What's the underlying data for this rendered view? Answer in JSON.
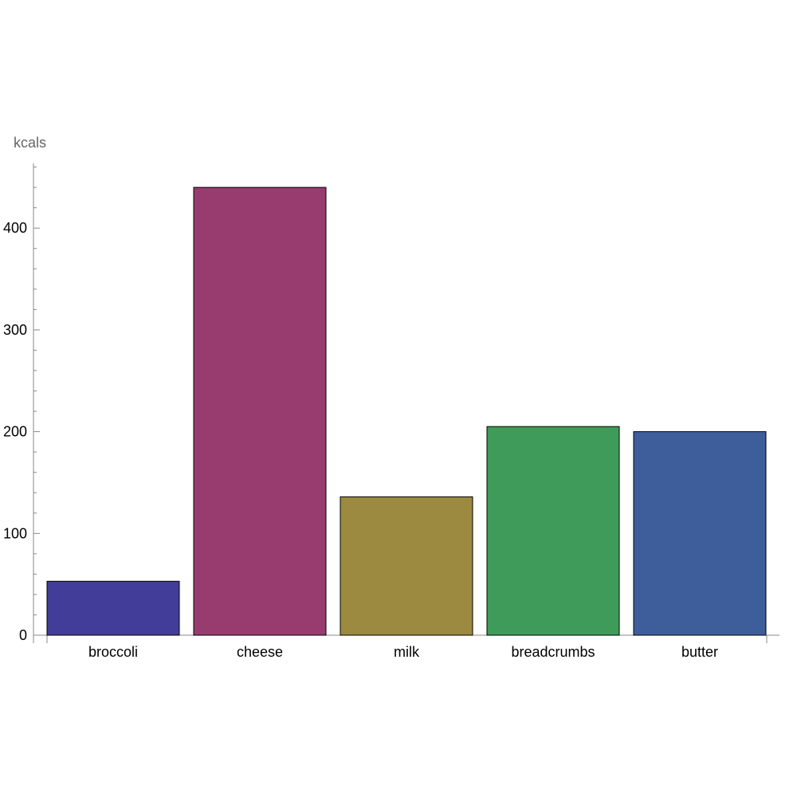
{
  "chart_data": {
    "type": "bar",
    "title": "",
    "xlabel": "",
    "ylabel": "kcals",
    "categories": [
      "broccoli",
      "cheese",
      "milk",
      "breadcrumbs",
      "butter"
    ],
    "values": [
      53,
      440,
      136,
      205,
      200
    ],
    "colors": [
      "#433d9a",
      "#983c6f",
      "#9b8a40",
      "#3f9b59",
      "#3e5e9b"
    ],
    "ylim": [
      0,
      465
    ],
    "yticks": [
      0,
      100,
      200,
      300,
      400
    ],
    "yticks_minor_step": 20,
    "grid": false,
    "legend": "none"
  }
}
